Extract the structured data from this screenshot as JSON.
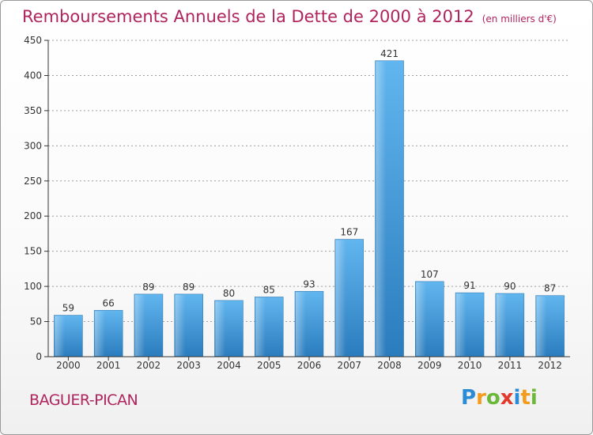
{
  "title": "Remboursements Annuels de la Dette de 2000 à 2012",
  "unit": "(en milliers d'€)",
  "commune": "BAGUER-PICAN",
  "logo_text": "Proxiti",
  "colors": {
    "title": "#b0245d",
    "bar_light": "#5fb4ee",
    "bar_dark": "#2878b8",
    "axis": "#333333",
    "grid": "#999999"
  },
  "chart_data": {
    "type": "bar",
    "categories": [
      "2000",
      "2001",
      "2002",
      "2003",
      "2004",
      "2005",
      "2006",
      "2007",
      "2008",
      "2009",
      "2010",
      "2011",
      "2012"
    ],
    "values": [
      59,
      66,
      89,
      89,
      80,
      85,
      93,
      167,
      421,
      107,
      91,
      90,
      87
    ],
    "ylim": [
      0,
      450
    ],
    "yticks": [
      0,
      50,
      100,
      150,
      200,
      250,
      300,
      350,
      400,
      450
    ],
    "grid": true,
    "xlabel": "",
    "ylabel": ""
  }
}
